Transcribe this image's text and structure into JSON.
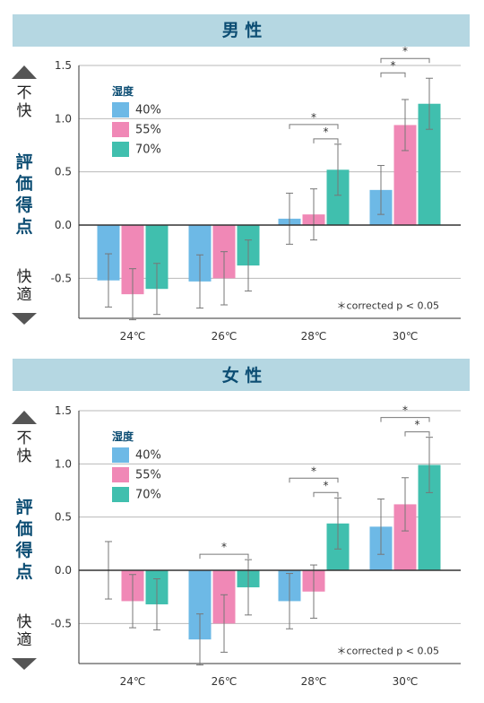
{
  "chart_data": [
    {
      "type": "bar",
      "title": "男 性",
      "categories": [
        "24℃",
        "26℃",
        "28℃",
        "30℃"
      ],
      "ylim": [
        -0.85,
        1.5
      ],
      "yticks": [
        1.5,
        1.0,
        0.5,
        0.0,
        -0.5
      ],
      "ytick_labels": [
        "1.5",
        "1.0",
        "0.5",
        "0.0",
        "-0.5"
      ],
      "ylabel_top": [
        "不",
        "快"
      ],
      "ylabel_middle": [
        "評",
        "価",
        "得",
        "点"
      ],
      "ylabel_bottom": [
        "快",
        "適"
      ],
      "grid": true,
      "legend_title": "湿度",
      "legend_position": "top-left",
      "note": "＊corrected p < 0.05",
      "series": [
        {
          "name": "40%",
          "color": "#6db9e6",
          "values": [
            -0.52,
            -0.53,
            0.06,
            0.33
          ],
          "err": [
            0.25,
            0.25,
            0.24,
            0.23
          ]
        },
        {
          "name": "55%",
          "color": "#f088b6",
          "values": [
            -0.65,
            -0.5,
            0.1,
            0.94
          ],
          "err": [
            0.24,
            0.25,
            0.24,
            0.24
          ]
        },
        {
          "name": "70%",
          "color": "#40bfae",
          "values": [
            -0.6,
            -0.38,
            0.52,
            1.14
          ],
          "err": [
            0.24,
            0.24,
            0.24,
            0.24
          ]
        }
      ],
      "significance": [
        {
          "category": 2,
          "from": 0,
          "to": 2,
          "level": 2,
          "label": "*"
        },
        {
          "category": 2,
          "from": 1,
          "to": 2,
          "level": 1,
          "label": "*"
        },
        {
          "category": 3,
          "from": 0,
          "to": 2,
          "level": 2,
          "label": "*"
        },
        {
          "category": 3,
          "from": 0,
          "to": 1,
          "level": 1,
          "label": "*"
        }
      ]
    },
    {
      "type": "bar",
      "title": "女 性",
      "categories": [
        "24℃",
        "26℃",
        "28℃",
        "30℃"
      ],
      "ylim": [
        -0.9,
        1.5
      ],
      "yticks": [
        1.5,
        1.0,
        0.5,
        0.0,
        -0.5
      ],
      "ytick_labels": [
        "1.5",
        "1.0",
        "0.5",
        "0.0",
        "-0.5"
      ],
      "ylabel_top": [
        "不",
        "快"
      ],
      "ylabel_middle": [
        "評",
        "価",
        "得",
        "点"
      ],
      "ylabel_bottom": [
        "快",
        "適"
      ],
      "grid": true,
      "legend_title": "湿度",
      "legend_position": "top-left",
      "note": "＊corrected p < 0.05",
      "series": [
        {
          "name": "40%",
          "color": "#6db9e6",
          "values": [
            0.0,
            -0.65,
            -0.29,
            0.41
          ],
          "err": [
            0.27,
            0.24,
            0.26,
            0.26
          ]
        },
        {
          "name": "55%",
          "color": "#f088b6",
          "values": [
            -0.29,
            -0.5,
            -0.2,
            0.62
          ],
          "err": [
            0.25,
            0.27,
            0.25,
            0.25
          ]
        },
        {
          "name": "70%",
          "color": "#40bfae",
          "values": [
            -0.32,
            -0.16,
            0.44,
            0.99
          ],
          "err": [
            0.24,
            0.26,
            0.24,
            0.26
          ]
        }
      ],
      "significance": [
        {
          "category": 1,
          "from": 0,
          "to": 2,
          "level": 1,
          "label": "*"
        },
        {
          "category": 2,
          "from": 0,
          "to": 2,
          "level": 2,
          "label": "*"
        },
        {
          "category": 2,
          "from": 1,
          "to": 2,
          "level": 1,
          "label": "*"
        },
        {
          "category": 3,
          "from": 0,
          "to": 2,
          "level": 2,
          "label": "*"
        },
        {
          "category": 3,
          "from": 1,
          "to": 2,
          "level": 1,
          "label": "*"
        }
      ]
    }
  ]
}
